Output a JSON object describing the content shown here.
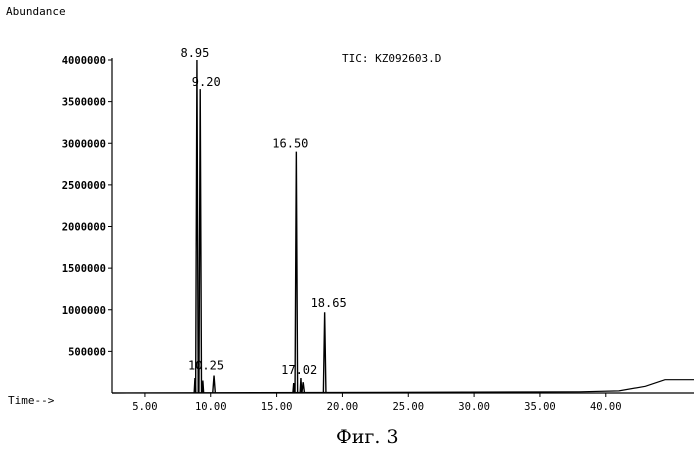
{
  "chart_data": {
    "type": "line",
    "title": "TIC: KZ092603.D",
    "ylabel": "Abundance",
    "xlabel": "Time-->",
    "xlim": [
      2.5,
      46.7
    ],
    "ylim": [
      0,
      4100000
    ],
    "yticks": [
      500000,
      1000000,
      1500000,
      2000000,
      2500000,
      3000000,
      3500000,
      4000000
    ],
    "ytick_labels": [
      "500000",
      "1000000",
      "1500000",
      "2000000",
      "2500000",
      "3000000",
      "3500000",
      "4000000"
    ],
    "xticks": [
      5,
      10,
      15,
      20,
      25,
      30,
      35,
      40
    ],
    "xtick_labels": [
      "5.00",
      "10.00",
      "15.00",
      "20.00",
      "25.00",
      "30.00",
      "35.00",
      "40.00"
    ],
    "peaks": [
      {
        "rt": 8.95,
        "label": "8.95",
        "abundance": 4000000
      },
      {
        "rt": 9.2,
        "label": "9.20",
        "abundance": 3650000
      },
      {
        "rt": 10.25,
        "label": "10.25",
        "abundance": 210000
      },
      {
        "rt": 16.5,
        "label": "16.50",
        "abundance": 2900000
      },
      {
        "rt": 17.02,
        "label": "17.02",
        "abundance": 130000
      },
      {
        "rt": 18.65,
        "label": "18.65",
        "abundance": 970000
      }
    ],
    "minor_peaks": [
      {
        "rt": 8.8,
        "abundance": 180000
      },
      {
        "rt": 9.4,
        "abundance": 150000
      },
      {
        "rt": 16.3,
        "abundance": 120000
      },
      {
        "rt": 16.85,
        "abundance": 180000
      }
    ],
    "baseline": [
      {
        "x": 2.5,
        "y": 0
      },
      {
        "x": 38,
        "y": 15000
      },
      {
        "x": 41,
        "y": 25000
      },
      {
        "x": 43,
        "y": 80000
      },
      {
        "x": 44.5,
        "y": 160000
      },
      {
        "x": 46.7,
        "y": 160000
      }
    ],
    "grid": false
  },
  "caption": "Фиг. 3"
}
